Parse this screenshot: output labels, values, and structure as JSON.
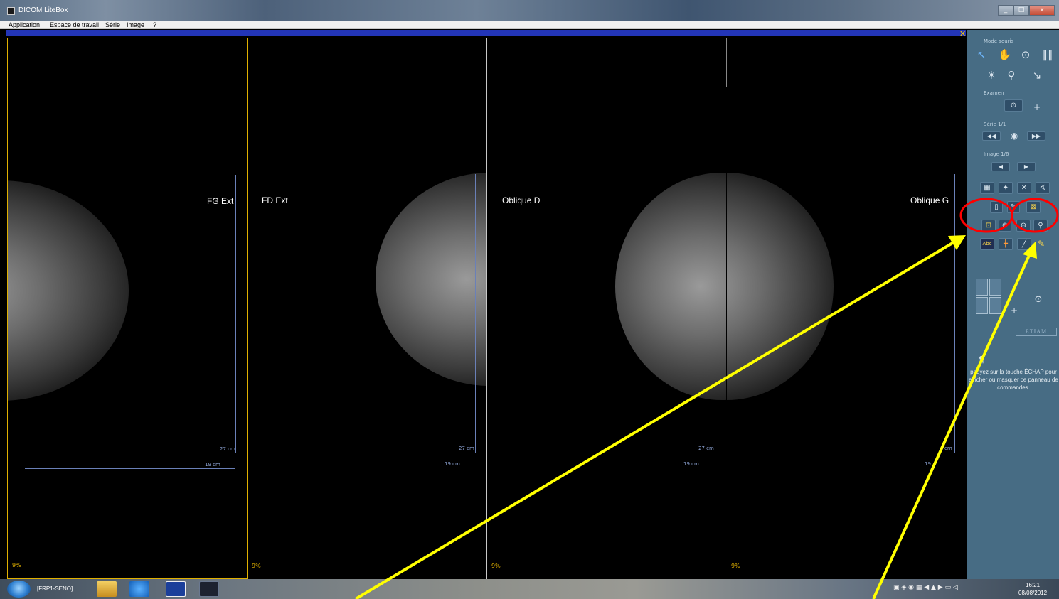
{
  "window": {
    "title": "DICOM LiteBox"
  },
  "menu": {
    "items": [
      "Application",
      "Espace de travail",
      "Série",
      "Image",
      "?"
    ]
  },
  "viewports": [
    {
      "label": "FG Ext",
      "zoom": "9%",
      "vscale": "27 cm",
      "hscale": "19 cm"
    },
    {
      "label": "FD Ext",
      "zoom": "9%",
      "vscale": "27 cm",
      "hscale": "19 cm"
    },
    {
      "label": "Oblique D",
      "zoom": "9%",
      "vscale": "27 cm",
      "hscale": "19 cm"
    },
    {
      "label": "Oblique G",
      "zoom": "9%",
      "vscale": "cm",
      "hscale": "19"
    }
  ],
  "panel": {
    "mode_souris": "Mode souris",
    "examen": "Examen",
    "serie": "Série 1/1",
    "image": "Image 1/6",
    "brand": "ETIAM",
    "help": "ppuyez sur la touche ÉCHAP pour afficher ou masquer ce panneau de commandes."
  },
  "taskbar": {
    "task": "[FRP1-SENO]",
    "time": "16:21",
    "date": "08/08/2012"
  },
  "colors": {
    "panel": "#476c84",
    "annotation_arrow": "#ffff00",
    "annotation_circle": "#ff0000",
    "active_viewport": "#e0b000"
  },
  "icons": [
    "pointer-icon",
    "hand-icon",
    "zoom-pan-icon",
    "windowing-icon",
    "brightness-icon",
    "magnifier-icon",
    "pointer-clear-icon"
  ]
}
